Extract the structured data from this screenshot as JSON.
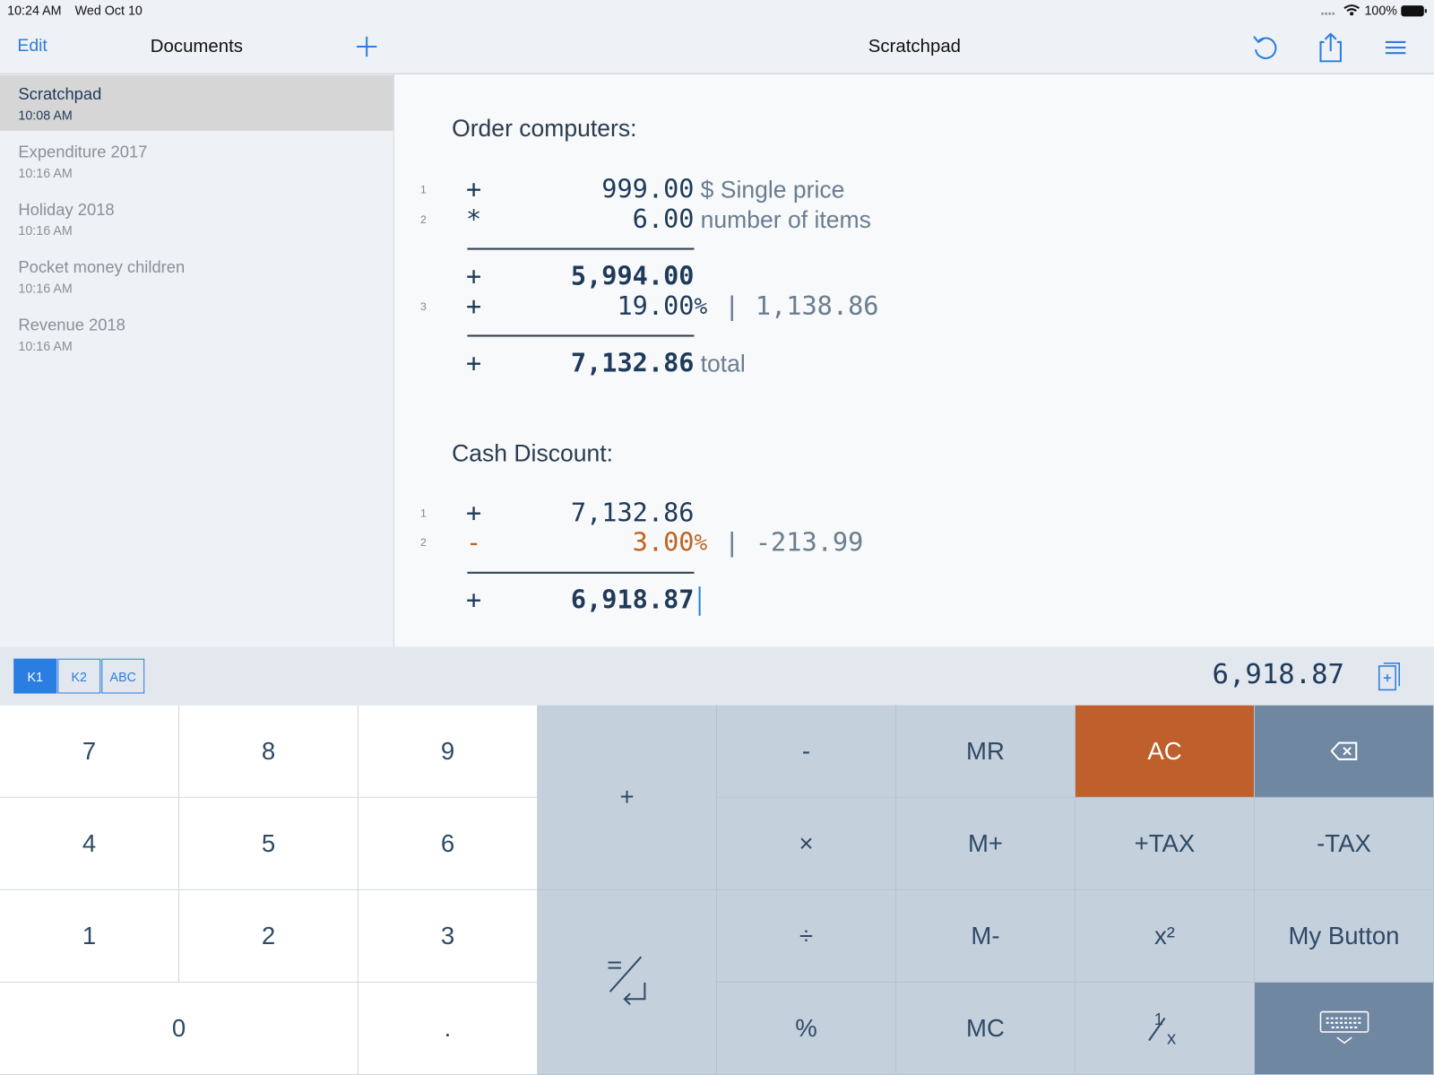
{
  "status_bar": {
    "time": "10:24 AM",
    "date": "Wed Oct 10",
    "battery": "100%"
  },
  "sidebar": {
    "edit": "Edit",
    "title": "Documents",
    "documents": [
      {
        "name": "Scratchpad",
        "time": "10:08 AM"
      },
      {
        "name": "Expenditure 2017",
        "time": "10:16 AM"
      },
      {
        "name": "Holiday 2018",
        "time": "10:16 AM"
      },
      {
        "name": "Pocket money children",
        "time": "10:16 AM"
      },
      {
        "name": "Revenue 2018",
        "time": "10:16 AM"
      }
    ]
  },
  "editor": {
    "title": "Scratchpad",
    "sections": [
      {
        "heading": "Order computers:",
        "rows": [
          {
            "number": "1",
            "op": "+",
            "value": "999.00",
            "note": "$ Single price"
          },
          {
            "number": "2",
            "op": "*",
            "value": "6.00",
            "note": "number of items"
          },
          {
            "op": "+",
            "value": "5,994.00"
          },
          {
            "number": "3",
            "op": "+",
            "value": "19.00",
            "suffix": "%",
            "separator": "|",
            "result": "1,138.86"
          },
          {
            "op": "+",
            "value": "7,132.86",
            "note": "total"
          }
        ]
      },
      {
        "heading": "Cash Discount:",
        "rows": [
          {
            "number": "1",
            "op": "+",
            "value": "7,132.86"
          },
          {
            "number": "2",
            "op": "-",
            "value": "3.00",
            "suffix": "%",
            "separator": "|",
            "result": "-213.99"
          },
          {
            "op": "+",
            "value": "6,918.87"
          }
        ]
      }
    ]
  },
  "keyboard": {
    "tabs": [
      "K1",
      "K2",
      "ABC"
    ],
    "display": "6,918.87",
    "keys": [
      "7",
      "8",
      "9",
      "4",
      "5",
      "6",
      "1",
      "2",
      "3",
      "0",
      ".",
      "+",
      "-",
      "MR",
      "AC",
      "×",
      "M+",
      "+TAX",
      "-TAX",
      "÷",
      "M-",
      "x²",
      "My Button",
      "%",
      "MC"
    ],
    "reciprocal": {
      "numerator": "1",
      "denominator": "x"
    }
  }
}
